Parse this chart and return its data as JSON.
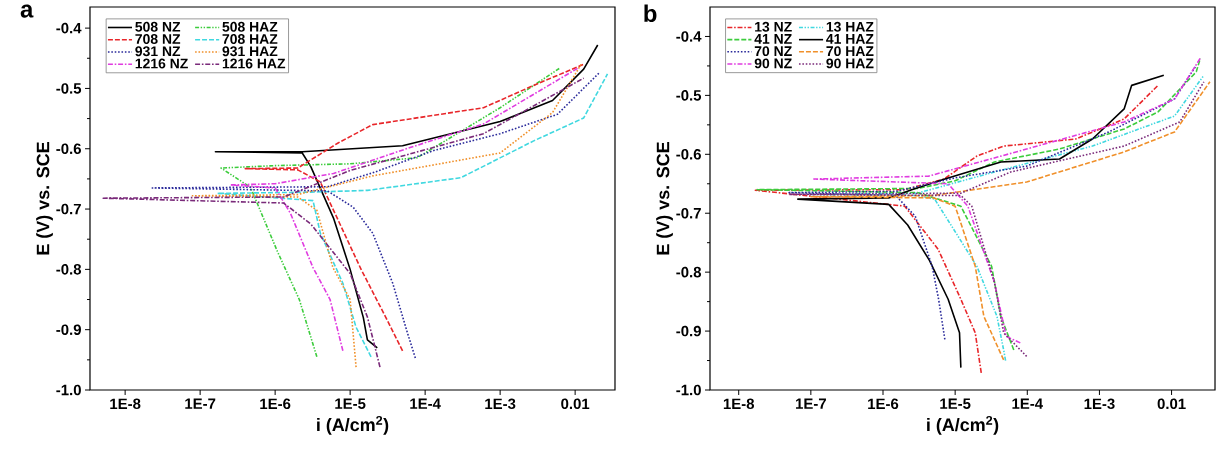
{
  "chart_data": [
    {
      "type": "line",
      "title": "a",
      "xlabel": "i (A/cm$^{2}$)",
      "ylabel": "E (V) vs. SCE",
      "log": "x",
      "legend": "top left",
      "xlim": [
        3.4e-09,
        0.034
      ],
      "ylim": [
        -1.0,
        -0.365
      ],
      "xticks": [
        {
          "value": 1e-08,
          "label": "1E-8"
        },
        {
          "value": 1e-07,
          "label": "1E-7"
        },
        {
          "value": 1e-06,
          "label": "1E-6"
        },
        {
          "value": 1e-05,
          "label": "1E-5"
        },
        {
          "value": 0.0001,
          "label": "1E-4"
        },
        {
          "value": 0.001,
          "label": "1E-3"
        },
        {
          "value": 0.01,
          "label": "0.01"
        }
      ],
      "yticks": [
        {
          "value": -0.4,
          "label": "-0.4"
        },
        {
          "value": -0.5,
          "label": "-0.5"
        },
        {
          "value": -0.6,
          "label": "-0.6"
        },
        {
          "value": -0.7,
          "label": "-0.7"
        },
        {
          "value": -0.8,
          "label": "-0.8"
        },
        {
          "value": -0.9,
          "label": "-0.9"
        },
        {
          "value": -1.0,
          "label": "-1.0"
        }
      ],
      "series": [
        {
          "name": "508 NZ",
          "color": "#000000",
          "line_style": "solid",
          "x": [
            2.3e-05,
            1.7e-05,
            1.5e-05,
            1e-05,
            6e-06,
            3e-06,
            2.3e-06,
            1.6e-07,
            2.3e-06,
            5e-05,
            0.001,
            0.005,
            0.013,
            0.02
          ],
          "values": [
            -0.93,
            -0.917,
            -0.88,
            -0.8,
            -0.715,
            -0.63,
            -0.607,
            -0.605,
            -0.605,
            -0.595,
            -0.555,
            -0.52,
            -0.468,
            -0.428
          ]
        },
        {
          "name": "508 HAZ",
          "color": "#3ccc3c",
          "line_style": "dashdotdot",
          "x": [
            3.6e-06,
            2.1e-06,
            1.07e-06,
            4.7e-07,
            1.9e-07,
            1e-06,
            1e-05,
            7.8e-05,
            0.001,
            0.0063
          ],
          "values": [
            -0.945,
            -0.85,
            -0.77,
            -0.664,
            -0.632,
            -0.628,
            -0.625,
            -0.615,
            -0.532,
            -0.466
          ]
        },
        {
          "name": "708 NZ",
          "color": "#e8262a",
          "line_style": "dashed",
          "x": [
            5e-05,
            3e-05,
            1.4e-05,
            4e-06,
            2e-06,
            4e-07,
            2e-06,
            7e-06,
            2e-05,
            0.0006,
            0.0028,
            0.013
          ],
          "values": [
            -0.935,
            -0.88,
            -0.8,
            -0.655,
            -0.635,
            -0.633,
            -0.632,
            -0.59,
            -0.56,
            -0.532,
            -0.495,
            -0.46
          ]
        },
        {
          "name": "708 HAZ",
          "color": "#40d8e0",
          "line_style": "dashed",
          "x": [
            1.9e-05,
            1.2e-05,
            8e-06,
            4e-06,
            3.2e-06,
            1.7e-07,
            3e-06,
            1.7e-05,
            0.0003,
            0.0028,
            0.013,
            0.027
          ],
          "values": [
            -0.945,
            -0.896,
            -0.823,
            -0.74,
            -0.686,
            -0.674,
            -0.672,
            -0.669,
            -0.648,
            -0.587,
            -0.549,
            -0.476
          ]
        },
        {
          "name": "931 NZ",
          "color": "#2a2a9a",
          "line_style": "dotted",
          "x": [
            7.4e-05,
            5.8e-05,
            3.7e-05,
            2e-05,
            1.1e-05,
            5e-06,
            2.3e-08,
            5e-06,
            2e-05,
            0.00013,
            0.001,
            0.0058,
            0.021
          ],
          "values": [
            -0.947,
            -0.905,
            -0.823,
            -0.74,
            -0.697,
            -0.67,
            -0.665,
            -0.663,
            -0.64,
            -0.603,
            -0.575,
            -0.543,
            -0.474
          ]
        },
        {
          "name": "931 HAZ",
          "color": "#f0902a",
          "line_style": "dotted",
          "x": [
            1.2e-05,
            1e-05,
            5.9e-06,
            3.6e-06,
            2e-06,
            7.9e-08,
            2e-06,
            2e-05,
            0.001,
            0.005,
            0.012
          ],
          "values": [
            -0.962,
            -0.85,
            -0.797,
            -0.702,
            -0.68,
            -0.678,
            -0.676,
            -0.645,
            -0.607,
            -0.54,
            -0.46
          ]
        },
        {
          "name": "1216 NZ",
          "color": "#e03ce0",
          "line_style": "dashdot",
          "x": [
            8e-06,
            5.4e-06,
            3.2e-06,
            1.6e-06,
            1e-06,
            2.5e-07,
            1e-06,
            6e-06,
            6.3e-05,
            0.0006,
            0.011
          ],
          "values": [
            -0.935,
            -0.85,
            -0.797,
            -0.707,
            -0.665,
            -0.66,
            -0.658,
            -0.641,
            -0.598,
            -0.559,
            -0.466
          ]
        },
        {
          "name": "1216 HAZ",
          "color": "#7a2a7a",
          "line_style": "dashdot",
          "x": [
            2.5e-05,
            1.7e-05,
            1e-05,
            3e-06,
            1.3e-06,
            5.1e-09,
            1.3e-06,
            1e-05,
            0.0006,
            0.013
          ],
          "values": [
            -0.962,
            -0.879,
            -0.807,
            -0.725,
            -0.69,
            -0.682,
            -0.68,
            -0.636,
            -0.575,
            -0.483
          ]
        }
      ]
    },
    {
      "type": "line",
      "title": "b",
      "xlabel": "i (A/cm$^{2}$)",
      "ylabel": "E (V) vs. SCE",
      "log": "x",
      "legend": "top left",
      "xlim": [
        4e-09,
        0.04
      ],
      "ylim": [
        -1.0,
        -0.35
      ],
      "xticks": [
        {
          "value": 1e-08,
          "label": "1E-8"
        },
        {
          "value": 1e-07,
          "label": "1E-7"
        },
        {
          "value": 1e-06,
          "label": "1E-6"
        },
        {
          "value": 1e-05,
          "label": "1E-5"
        },
        {
          "value": 0.0001,
          "label": "1E-4"
        },
        {
          "value": 0.001,
          "label": "1E-3"
        },
        {
          "value": 0.01,
          "label": "0.01"
        }
      ],
      "yticks": [
        {
          "value": -0.4,
          "label": "-0.4"
        },
        {
          "value": -0.5,
          "label": "-0.5"
        },
        {
          "value": -0.6,
          "label": "-0.6"
        },
        {
          "value": -0.7,
          "label": "-0.7"
        },
        {
          "value": -0.8,
          "label": "-0.8"
        },
        {
          "value": -0.9,
          "label": "-0.9"
        },
        {
          "value": -1.0,
          "label": "-1.0"
        }
      ],
      "series": [
        {
          "name": "13 NZ",
          "color": "#e8262a",
          "line_style": "dashdot",
          "x": [
            2.3e-05,
            1.9e-05,
            1.2e-05,
            5.8e-06,
            2e-06,
            1.7e-08,
            2e-06,
            7e-06,
            2e-05,
            4.7e-05,
            0.00047,
            0.0022,
            0.0065
          ],
          "values": [
            -0.971,
            -0.903,
            -0.846,
            -0.761,
            -0.688,
            -0.661,
            -0.66,
            -0.642,
            -0.603,
            -0.586,
            -0.574,
            -0.54,
            -0.483
          ]
        },
        {
          "name": "13 HAZ",
          "color": "#40d8e0",
          "line_style": "dashdotdot",
          "x": [
            5e-05,
            4.7e-05,
            3.8e-05,
            2e-05,
            5.2e-06,
            3e-06,
            1e-07,
            3e-06,
            3.5e-05,
            0.0008,
            0.011,
            0.028
          ],
          "values": [
            -0.95,
            -0.932,
            -0.875,
            -0.79,
            -0.676,
            -0.67,
            -0.668,
            -0.666,
            -0.63,
            -0.586,
            -0.535,
            -0.466
          ]
        },
        {
          "name": "41 NZ",
          "color": "#3ccc3c",
          "line_style": "dashed",
          "x": [
            6.5e-05,
            4.3e-05,
            3.2e-05,
            1.2e-05,
            3e-06,
            1.8e-08,
            3e-06,
            1e-05,
            3.5e-05,
            0.00028,
            0.0022,
            0.0065,
            0.022,
            0.025
          ],
          "values": [
            -0.932,
            -0.875,
            -0.79,
            -0.688,
            -0.665,
            -0.66,
            -0.658,
            -0.645,
            -0.613,
            -0.591,
            -0.557,
            -0.528,
            -0.46,
            -0.437
          ]
        },
        {
          "name": "41 HAZ",
          "color": "#000000",
          "line_style": "solid",
          "x": [
            1.2e-05,
            1.15e-05,
            8e-06,
            4.4e-06,
            2.2e-06,
            1.2e-06,
            6.6e-08,
            1.2e-06,
            2.5e-06,
            7.2e-06,
            4.3e-05,
            0.00028,
            0.0008,
            0.0022,
            0.0028,
            0.0078
          ],
          "values": [
            -0.962,
            -0.903,
            -0.846,
            -0.78,
            -0.72,
            -0.685,
            -0.676,
            -0.674,
            -0.66,
            -0.642,
            -0.613,
            -0.608,
            -0.574,
            -0.523,
            -0.483,
            -0.466
          ]
        },
        {
          "name": "70 NZ",
          "color": "#2a2a9a",
          "line_style": "dotted",
          "x": [
            7.2e-06,
            5.9e-06,
            4.8e-06,
            2.8e-06,
            1.5e-06,
            5e-08,
            1.5e-06,
            1e-05,
            9.8e-05,
            0.00135,
            0.011,
            0.022
          ],
          "values": [
            -0.914,
            -0.846,
            -0.79,
            -0.705,
            -0.67,
            -0.665,
            -0.663,
            -0.64,
            -0.62,
            -0.562,
            -0.506,
            -0.449
          ]
        },
        {
          "name": "70 HAZ",
          "color": "#f0902a",
          "line_style": "dashed",
          "x": [
            4.7e-05,
            2.5e-05,
            1.9e-05,
            1e-05,
            5e-06,
            1e-07,
            5e-06,
            9.8e-05,
            0.0022,
            0.011,
            0.034
          ],
          "values": [
            -0.949,
            -0.875,
            -0.79,
            -0.688,
            -0.674,
            -0.672,
            -0.67,
            -0.647,
            -0.596,
            -0.562,
            -0.477
          ]
        },
        {
          "name": "90 NZ",
          "color": "#e03ce0",
          "line_style": "dashdot",
          "x": [
            8e-05,
            5.1e-05,
            3.5e-05,
            1.5e-05,
            8e-06,
            1.1e-07,
            4.3e-06,
            9.8e-05,
            0.0022,
            0.011,
            0.025
          ],
          "values": [
            -0.92,
            -0.909,
            -0.817,
            -0.688,
            -0.65,
            -0.642,
            -0.637,
            -0.591,
            -0.545,
            -0.506,
            -0.437
          ]
        },
        {
          "name": "90 HAZ",
          "color": "#7a2a7a",
          "line_style": "dotted",
          "x": [
            9.8e-05,
            4.7e-05,
            3.5e-05,
            1.7e-05,
            1.2e-05,
            5e-08,
            1.2e-05,
            5.9e-05,
            0.0022,
            0.013,
            0.028
          ],
          "values": [
            -0.943,
            -0.903,
            -0.817,
            -0.688,
            -0.67,
            -0.668,
            -0.666,
            -0.63,
            -0.586,
            -0.545,
            -0.477
          ]
        }
      ]
    }
  ]
}
